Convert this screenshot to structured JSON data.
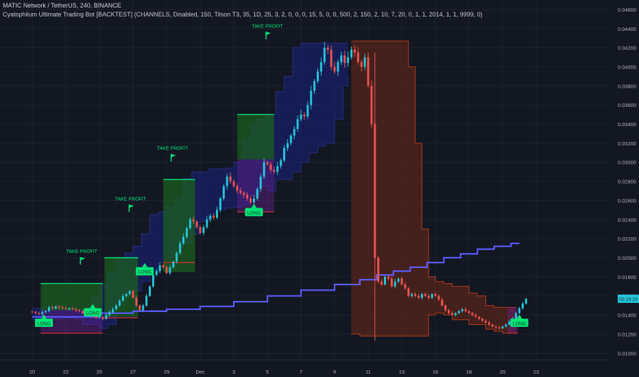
{
  "header": {
    "symbol_line": "MATIC Network / TetherUS, 240, BINANCE",
    "indicator_line": "Cyatophilum Ultimate Trading Bot [BACKTEST] (CHANNELS, Disabled, 150, Tilson T3, 35, 1D, 25, 3, 2, 0, 0, 0, 15, 5, 0, 0, 500, 2, 150, 2, 10, 7, 20, 0, 1, 1, 2014, 1, 1, 9999, 0)"
  },
  "colors": {
    "background": "#131722",
    "up_candle": "#26c6da",
    "down_candle": "#ef5350",
    "channel_blue": "#1a237e",
    "channel_red": "#6d2818",
    "tp_zone": "#1b5e20",
    "sl_line": "#d32f2f",
    "baseline": "#5b5bff",
    "signal_green": "#00e676",
    "axis_text": "#b2b5be"
  },
  "chart_data": {
    "type": "candlestick",
    "x_ticks": [
      "20",
      "22",
      "25",
      "27",
      "29",
      "Dec",
      "3",
      "5",
      "7",
      "9",
      "11",
      "13",
      "16",
      "18",
      "20",
      "23"
    ],
    "y_ticks": [
      "0.04600",
      "0.04400",
      "0.04200",
      "0.04000",
      "0.03800",
      "0.03600",
      "0.03400",
      "0.03200",
      "0.03000",
      "0.02800",
      "0.02600",
      "0.02400",
      "0.02200",
      "0.02000",
      "0.01800",
      "0.01600",
      "0.01400",
      "0.01200",
      "0.01000"
    ],
    "ylim": [
      0.0093,
      0.047
    ],
    "price_label": "00:29:25",
    "current_price": 0.0157,
    "long_labels": [
      {
        "text": "LONG",
        "x": 0.7,
        "y": 0.0134
      },
      {
        "text": "LONG",
        "x": 3.6,
        "y": 0.0145
      },
      {
        "text": "LONG",
        "x": 6.7,
        "y": 0.0188
      },
      {
        "text": "LONG",
        "x": 13.2,
        "y": 0.025
      },
      {
        "text": "LONG",
        "x": 29.0,
        "y": 0.0134
      }
    ],
    "take_profit_labels": [
      {
        "text": "TAKE PROFIT",
        "x": 2.95,
        "y": 0.0195
      },
      {
        "text": "TAKE PROFIT",
        "x": 5.85,
        "y": 0.025
      },
      {
        "text": "TAKE PROFIT",
        "x": 8.35,
        "y": 0.0303
      },
      {
        "text": "TAKE PROFIT",
        "x": 14.0,
        "y": 0.0431
      }
    ],
    "trades": [
      {
        "start": 0.5,
        "end": 4.2,
        "entry": 0.0145,
        "tp": 0.0173,
        "sl": 0.0121
      },
      {
        "start": 4.3,
        "end": 6.3,
        "entry": 0.0138,
        "tp": 0.02,
        "sl": 0.0137
      },
      {
        "start": 7.8,
        "end": 9.7,
        "entry": 0.0185,
        "tp": 0.0282,
        "sl": 0.0195
      },
      {
        "start": 12.2,
        "end": 14.4,
        "entry": 0.0303,
        "tp": 0.035,
        "sl": 0.0248
      },
      {
        "start": 28.3,
        "end": 28.9,
        "entry": 0.0148,
        "tp": 0.0148,
        "sl": 0.0121
      }
    ],
    "channel_blue": [
      [
        0.0,
        0.0147,
        0.0135
      ],
      [
        0.5,
        0.0148,
        0.0135
      ],
      [
        1.0,
        0.0147,
        0.0136
      ],
      [
        1.5,
        0.0146,
        0.0136
      ],
      [
        2.0,
        0.0146,
        0.0137
      ],
      [
        2.5,
        0.0146,
        0.0136
      ],
      [
        3.0,
        0.0147,
        0.013
      ],
      [
        3.5,
        0.0158,
        0.013
      ],
      [
        4.0,
        0.0172,
        0.0126
      ],
      [
        4.5,
        0.0185,
        0.013
      ],
      [
        5.0,
        0.0198,
        0.015
      ],
      [
        5.5,
        0.0205,
        0.016
      ],
      [
        6.0,
        0.0212,
        0.0165
      ],
      [
        6.5,
        0.0225,
        0.0175
      ],
      [
        7.0,
        0.0245,
        0.0185
      ],
      [
        7.5,
        0.0248,
        0.0195
      ],
      [
        8.0,
        0.0253,
        0.02
      ],
      [
        8.5,
        0.0263,
        0.021
      ],
      [
        9.0,
        0.0283,
        0.0215
      ],
      [
        9.5,
        0.029,
        0.0225
      ],
      [
        10.0,
        0.029,
        0.0238
      ],
      [
        10.5,
        0.0293,
        0.0245
      ],
      [
        11.0,
        0.0293,
        0.025
      ],
      [
        11.5,
        0.0294,
        0.0252
      ],
      [
        12.0,
        0.03,
        0.0253
      ],
      [
        12.5,
        0.0325,
        0.0255
      ],
      [
        13.0,
        0.034,
        0.0265
      ],
      [
        13.5,
        0.0345,
        0.0275
      ],
      [
        14.0,
        0.035,
        0.027
      ],
      [
        14.5,
        0.0374,
        0.0282
      ],
      [
        15.0,
        0.039,
        0.0282
      ],
      [
        15.5,
        0.042,
        0.029
      ],
      [
        16.0,
        0.0425,
        0.03
      ],
      [
        16.5,
        0.0425,
        0.031
      ],
      [
        17.0,
        0.0425,
        0.0317
      ],
      [
        17.5,
        0.0425,
        0.032
      ],
      [
        18.0,
        0.0425,
        0.0345
      ],
      [
        18.5,
        0.0425,
        0.038
      ],
      [
        18.8,
        0.0425,
        0.039
      ]
    ],
    "channel_red": [
      [
        19.0,
        0.0427,
        0.012
      ],
      [
        19.5,
        0.0427,
        0.0118
      ],
      [
        20.0,
        0.0427,
        0.0118
      ],
      [
        20.5,
        0.0427,
        0.0118
      ],
      [
        21.0,
        0.0427,
        0.0118
      ],
      [
        21.5,
        0.0427,
        0.0118
      ],
      [
        22.0,
        0.0427,
        0.0118
      ],
      [
        22.4,
        0.04,
        0.0118
      ],
      [
        22.8,
        0.032,
        0.0118
      ],
      [
        23.2,
        0.023,
        0.0118
      ],
      [
        23.6,
        0.018,
        0.014
      ],
      [
        24.0,
        0.0175,
        0.0142
      ],
      [
        24.5,
        0.0173,
        0.014
      ],
      [
        25.0,
        0.017,
        0.0135
      ],
      [
        25.5,
        0.017,
        0.0135
      ],
      [
        26.0,
        0.0163,
        0.013
      ],
      [
        26.5,
        0.016,
        0.013
      ],
      [
        27.0,
        0.015,
        0.0125
      ],
      [
        27.5,
        0.0148,
        0.0123
      ],
      [
        28.0,
        0.0148,
        0.0121
      ],
      [
        28.5,
        0.0148,
        0.0121
      ],
      [
        28.8,
        0.0148,
        0.0121
      ]
    ],
    "baseline": [
      [
        0.0,
        0.0138
      ],
      [
        4.0,
        0.0142
      ],
      [
        6.0,
        0.0144
      ],
      [
        8.0,
        0.0146
      ],
      [
        10.0,
        0.0149
      ],
      [
        12.0,
        0.0154
      ],
      [
        14.0,
        0.016
      ],
      [
        16.0,
        0.0166
      ],
      [
        18.0,
        0.0172
      ],
      [
        19.5,
        0.0177
      ],
      [
        20.5,
        0.0182
      ],
      [
        21.5,
        0.0186
      ],
      [
        22.5,
        0.019
      ],
      [
        23.5,
        0.0195
      ],
      [
        24.5,
        0.02
      ],
      [
        25.5,
        0.0204
      ],
      [
        26.5,
        0.0209
      ],
      [
        27.5,
        0.0212
      ],
      [
        28.5,
        0.0215
      ],
      [
        29.0,
        0.0215
      ]
    ],
    "closes": [
      0.0143,
      0.0142,
      0.0141,
      0.0143,
      0.0144,
      0.0148,
      0.0147,
      0.0149,
      0.0148,
      0.0147,
      0.0146,
      0.0147,
      0.0146,
      0.0145,
      0.0144,
      0.0142,
      0.014,
      0.0141,
      0.0139,
      0.0137,
      0.0138,
      0.0136,
      0.014,
      0.0143,
      0.0146,
      0.015,
      0.0155,
      0.016,
      0.0162,
      0.0165,
      0.0158,
      0.015,
      0.0145,
      0.015,
      0.016,
      0.017,
      0.0182,
      0.0186,
      0.0192,
      0.019,
      0.0184,
      0.019,
      0.0196,
      0.0205,
      0.0215,
      0.0222,
      0.0231,
      0.024,
      0.0238,
      0.0232,
      0.0226,
      0.0232,
      0.024,
      0.0244,
      0.0242,
      0.025,
      0.0262,
      0.0275,
      0.0285,
      0.028,
      0.0275,
      0.027,
      0.0268,
      0.0266,
      0.0262,
      0.0258,
      0.0262,
      0.0272,
      0.0285,
      0.03,
      0.0298,
      0.0292,
      0.029,
      0.0296,
      0.0302,
      0.0315,
      0.032,
      0.0328,
      0.0335,
      0.0345,
      0.035,
      0.0348,
      0.036,
      0.0375,
      0.0385,
      0.0395,
      0.0405,
      0.042,
      0.0418,
      0.04,
      0.0395,
      0.0405,
      0.0412,
      0.0404,
      0.041,
      0.0418,
      0.0415,
      0.0405,
      0.04,
      0.041,
      0.038,
      0.034,
      0.02,
      0.0175,
      0.0172,
      0.018,
      0.0178,
      0.017,
      0.0175,
      0.0178,
      0.0172,
      0.0168,
      0.016,
      0.0162,
      0.016,
      0.0158,
      0.0162,
      0.016,
      0.0158,
      0.0162,
      0.016,
      0.0156,
      0.015,
      0.0145,
      0.0142,
      0.014,
      0.0142,
      0.0144,
      0.0146,
      0.0144,
      0.0142,
      0.014,
      0.0138,
      0.0136,
      0.0134,
      0.0132,
      0.013,
      0.0128,
      0.0127,
      0.0126,
      0.0128,
      0.013,
      0.0133,
      0.0136,
      0.0142,
      0.0147,
      0.0152,
      0.0157
    ]
  }
}
